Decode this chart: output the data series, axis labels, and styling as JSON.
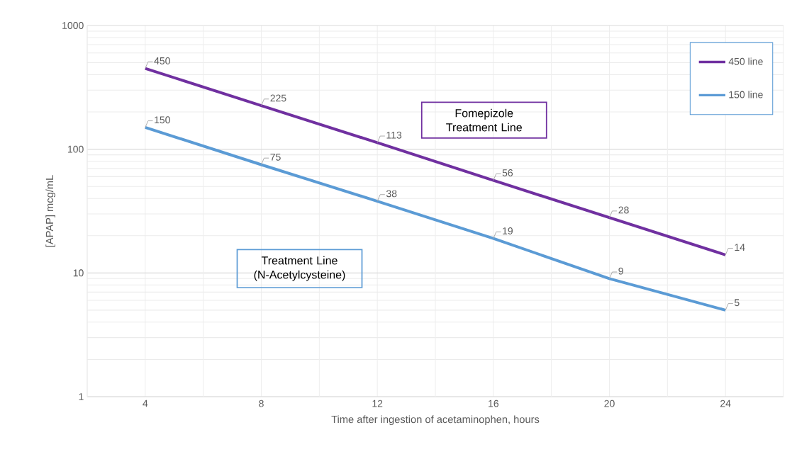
{
  "chart_data": {
    "type": "line",
    "xlabel": "Time after ingestion of acetaminophen, hours",
    "ylabel": "[APAP] mcg/mL",
    "x": [
      4,
      8,
      12,
      16,
      20,
      24
    ],
    "series": [
      {
        "name": "450 line",
        "color": "#7030a0",
        "values": [
          450,
          225,
          113,
          56,
          28,
          14
        ]
      },
      {
        "name": "150 line",
        "color": "#5b9bd5",
        "values": [
          150,
          75,
          38,
          19,
          9,
          5
        ]
      }
    ],
    "xlim": [
      2,
      26
    ],
    "xticks": [
      {
        "value": 2,
        "label": null
      },
      4,
      {
        "value": 6,
        "label": null
      },
      8,
      {
        "value": 10,
        "label": null
      },
      12,
      {
        "value": 14,
        "label": null
      },
      16,
      {
        "value": 18,
        "label": null
      },
      20,
      {
        "value": 22,
        "label": null
      },
      24,
      {
        "value": 26,
        "label": null
      }
    ],
    "ylim": [
      1,
      1000
    ],
    "yticks": [
      1,
      10,
      100,
      1000
    ],
    "log": "y",
    "grid": true,
    "legend": "top right",
    "marker": "none",
    "line_style": "solid",
    "data_labels": true,
    "annotations": [
      "Fomepizole Treatment Line",
      "Treatment Line (N-Acetylcysteine)"
    ]
  }
}
